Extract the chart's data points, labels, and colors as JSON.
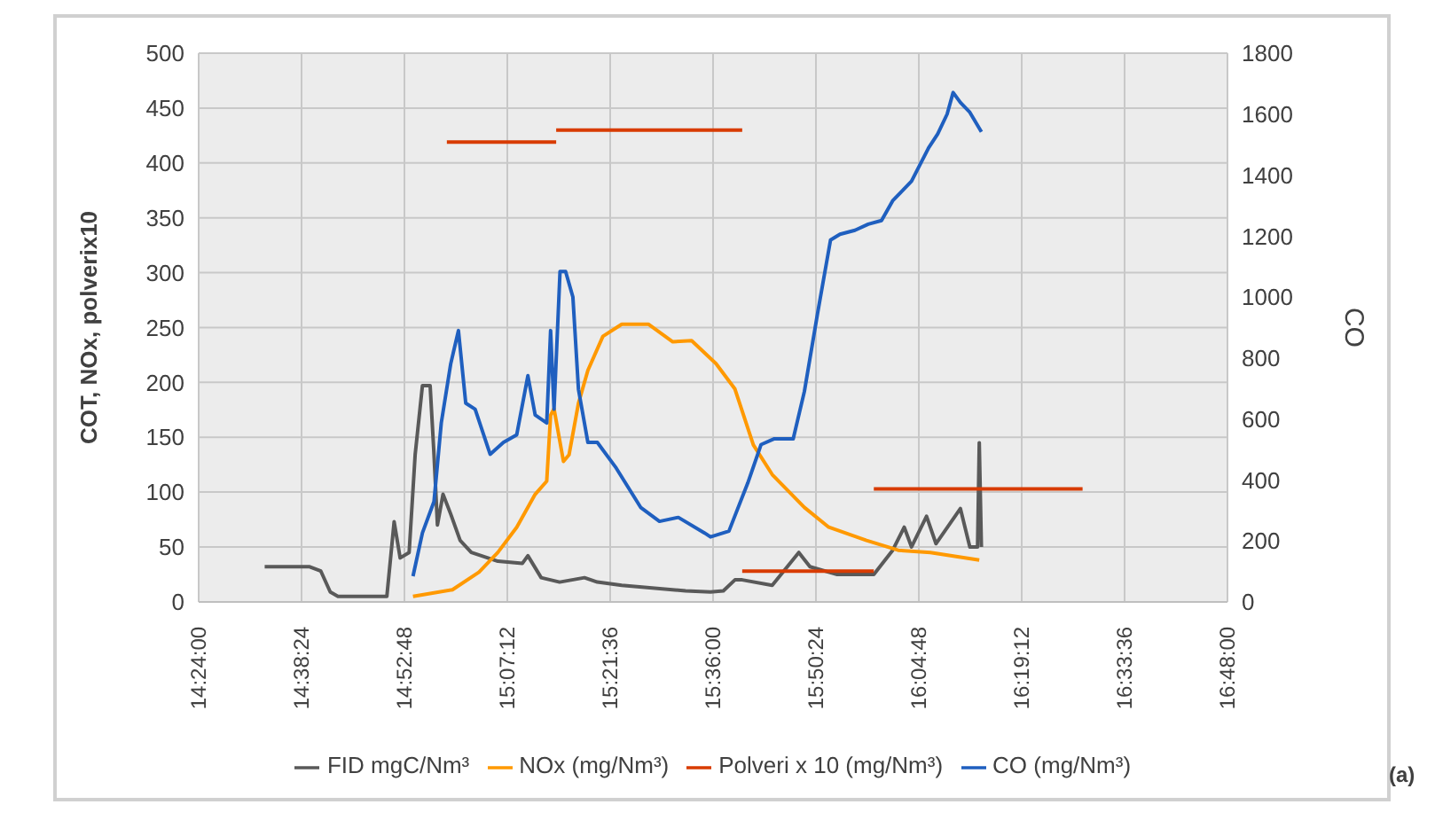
{
  "chart_data": {
    "type": "line",
    "ylabel": "COT, NOx, polverix10",
    "y2label": "CO",
    "xlim": [
      14.4,
      16.8
    ],
    "xticks": [
      {
        "value": 14.4,
        "label": "14:24:00"
      },
      {
        "value": 14.64,
        "label": "14:38:24"
      },
      {
        "value": 14.88,
        "label": "14:52:48"
      },
      {
        "value": 15.12,
        "label": "15:07:12"
      },
      {
        "value": 15.36,
        "label": "15:21:36"
      },
      {
        "value": 15.6,
        "label": "15:36:00"
      },
      {
        "value": 15.84,
        "label": "15:50:24"
      },
      {
        "value": 16.08,
        "label": "16:04:48"
      },
      {
        "value": 16.32,
        "label": "16:19:12"
      },
      {
        "value": 16.56,
        "label": "16:33:36"
      },
      {
        "value": 16.8,
        "label": "16:48:00"
      }
    ],
    "ylim": [
      0,
      500
    ],
    "yticks": [
      0,
      50,
      100,
      150,
      200,
      250,
      300,
      350,
      400,
      450,
      500
    ],
    "y2lim": [
      0,
      1800
    ],
    "y2ticks": [
      0,
      200,
      400,
      600,
      800,
      1000,
      1200,
      1400,
      1600,
      1800
    ],
    "grid": true,
    "legend": "bottom",
    "annotations": [
      "(a)"
    ],
    "series": [
      {
        "name": "FID mgC/Nm³",
        "color": "#595959",
        "axis": "y",
        "x": [
          14.554,
          14.659,
          14.685,
          14.707,
          14.725,
          14.839,
          14.856,
          14.87,
          14.891,
          14.905,
          14.922,
          14.94,
          14.949,
          14.957,
          14.97,
          14.988,
          15.01,
          15.036,
          15.098,
          15.155,
          15.168,
          15.199,
          15.242,
          15.3,
          15.33,
          15.387,
          15.536,
          15.594,
          15.624,
          15.651,
          15.668,
          15.738,
          15.8,
          15.826,
          15.888,
          15.975,
          16.019,
          16.046,
          16.063,
          16.098,
          16.12,
          16.177,
          16.199,
          16.217,
          16.221,
          16.226
        ],
        "values": [
          32,
          32,
          28,
          9,
          5,
          5,
          73,
          40,
          45,
          134,
          197,
          197,
          134,
          70,
          98,
          80,
          56,
          45,
          37,
          35,
          42,
          22,
          18,
          22,
          18,
          15,
          10,
          9,
          10,
          20,
          20,
          15,
          45,
          32,
          25,
          25,
          47,
          68,
          50,
          78,
          53,
          85,
          50,
          50,
          145,
          50
        ]
      },
      {
        "name": "NOx (mg/Nm³)",
        "color": "#ff9900",
        "axis": "y",
        "x": [
          14.9,
          14.992,
          15.054,
          15.098,
          15.142,
          15.185,
          15.212,
          15.221,
          15.229,
          15.251,
          15.264,
          15.286,
          15.308,
          15.343,
          15.387,
          15.449,
          15.506,
          15.55,
          15.607,
          15.651,
          15.694,
          15.738,
          15.813,
          15.87,
          15.958,
          16.032,
          16.107,
          16.221
        ],
        "values": [
          5,
          11,
          27,
          45,
          68,
          98,
          110,
          170,
          176,
          128,
          134,
          181,
          211,
          242,
          253,
          253,
          237,
          238,
          217,
          194,
          143,
          116,
          86,
          68,
          56,
          47,
          45,
          38
        ]
      },
      {
        "name": "Polveri x 10 (mg/Nm³)",
        "color": "#d83b01",
        "axis": "y",
        "x": [
          14.979,
          15.234,
          15.234,
          15.668,
          15.668,
          15.975,
          15.975,
          16.462
        ],
        "values": [
          419,
          419,
          430,
          430,
          28,
          28,
          103,
          103
        ]
      },
      {
        "name": "CO (mg/Nm³)",
        "color": "#1f5fbf",
        "axis": "y2",
        "x": [
          14.9,
          14.922,
          14.949,
          14.966,
          14.988,
          15.006,
          15.023,
          15.045,
          15.08,
          15.111,
          15.142,
          15.168,
          15.185,
          15.212,
          15.221,
          15.229,
          15.243,
          15.256,
          15.273,
          15.286,
          15.308,
          15.33,
          15.374,
          15.431,
          15.475,
          15.519,
          15.58,
          15.594,
          15.637,
          15.681,
          15.712,
          15.743,
          15.787,
          15.813,
          15.844,
          15.874,
          15.896,
          15.931,
          15.962,
          15.993,
          16.019,
          16.063,
          16.103,
          16.124,
          16.146,
          16.16,
          16.177,
          16.199,
          16.226
        ],
        "values": [
          84,
          226,
          329,
          587,
          781,
          890,
          652,
          632,
          484,
          523,
          548,
          742,
          613,
          587,
          890,
          632,
          1084,
          1084,
          1000,
          697,
          523,
          523,
          439,
          310,
          264,
          277,
          226,
          213,
          232,
          390,
          516,
          535,
          535,
          690,
          948,
          1187,
          1206,
          1219,
          1239,
          1251,
          1316,
          1380,
          1490,
          1535,
          1600,
          1671,
          1638,
          1606,
          1542
        ]
      }
    ]
  }
}
